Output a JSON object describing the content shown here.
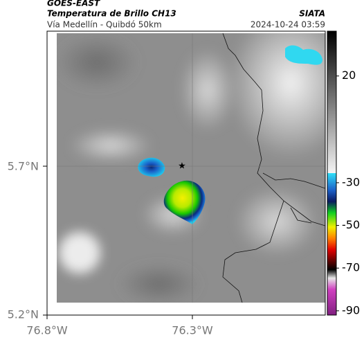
{
  "header": {
    "title": "GOES-EAST",
    "subtitle": "Temperatura de Brillo CH13",
    "route": "Vía Medellín - Quibdó 50km",
    "source": "SIATA",
    "timestamp": "2024-10-24 03:59"
  },
  "map": {
    "lat_labels": [
      "5.7°N",
      "5.2°N"
    ],
    "lon_labels": [
      "76.8°W",
      "76.3°W"
    ]
  },
  "colorbar": {
    "range": [
      41,
      -92
    ],
    "ticks": [
      20,
      -30,
      -50,
      -70,
      -90
    ]
  }
}
